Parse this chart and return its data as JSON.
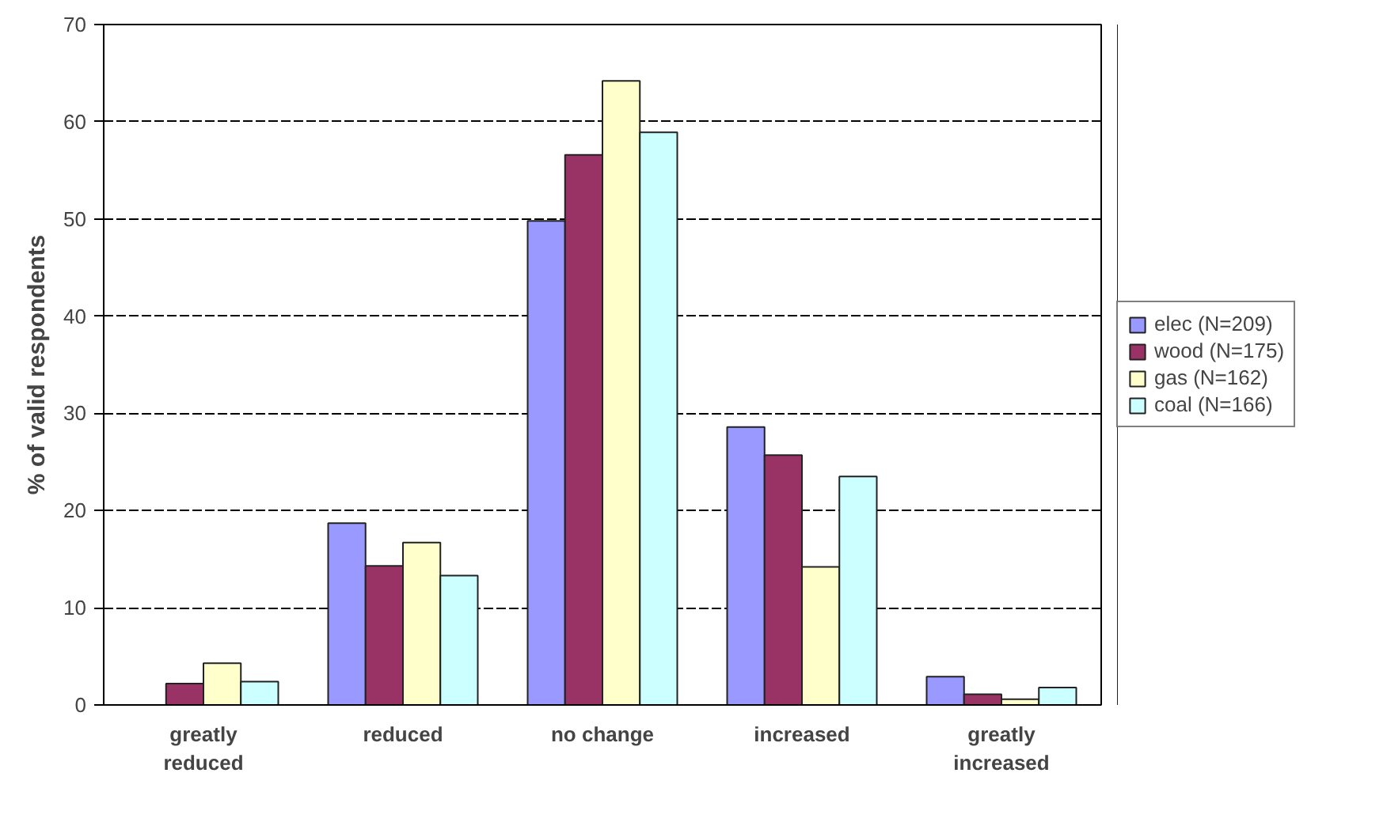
{
  "chart_data": {
    "type": "bar",
    "ylabel": "% of valid respondents",
    "categories": [
      "greatly\nreduced",
      "reduced",
      "no change",
      "increased",
      "greatly\nincreased"
    ],
    "series": [
      {
        "name": "elec (N=209)",
        "color": "#9999ff",
        "values": [
          0,
          18.7,
          49.8,
          28.6,
          2.9
        ]
      },
      {
        "name": "wood (N=175)",
        "color": "#993366",
        "values": [
          2.2,
          14.3,
          56.6,
          25.7,
          1.1
        ]
      },
      {
        "name": "gas (N=162)",
        "color": "#ffffcc",
        "values": [
          4.3,
          16.7,
          64.2,
          14.2,
          0.6
        ]
      },
      {
        "name": "coal (N=166)",
        "color": "#ccffff",
        "values": [
          2.4,
          13.3,
          58.9,
          23.5,
          1.8
        ]
      }
    ],
    "ylim": [
      0,
      70
    ],
    "yticks": [
      0,
      10,
      20,
      30,
      40,
      50,
      60,
      70
    ],
    "grid": "y",
    "legend": "right"
  }
}
